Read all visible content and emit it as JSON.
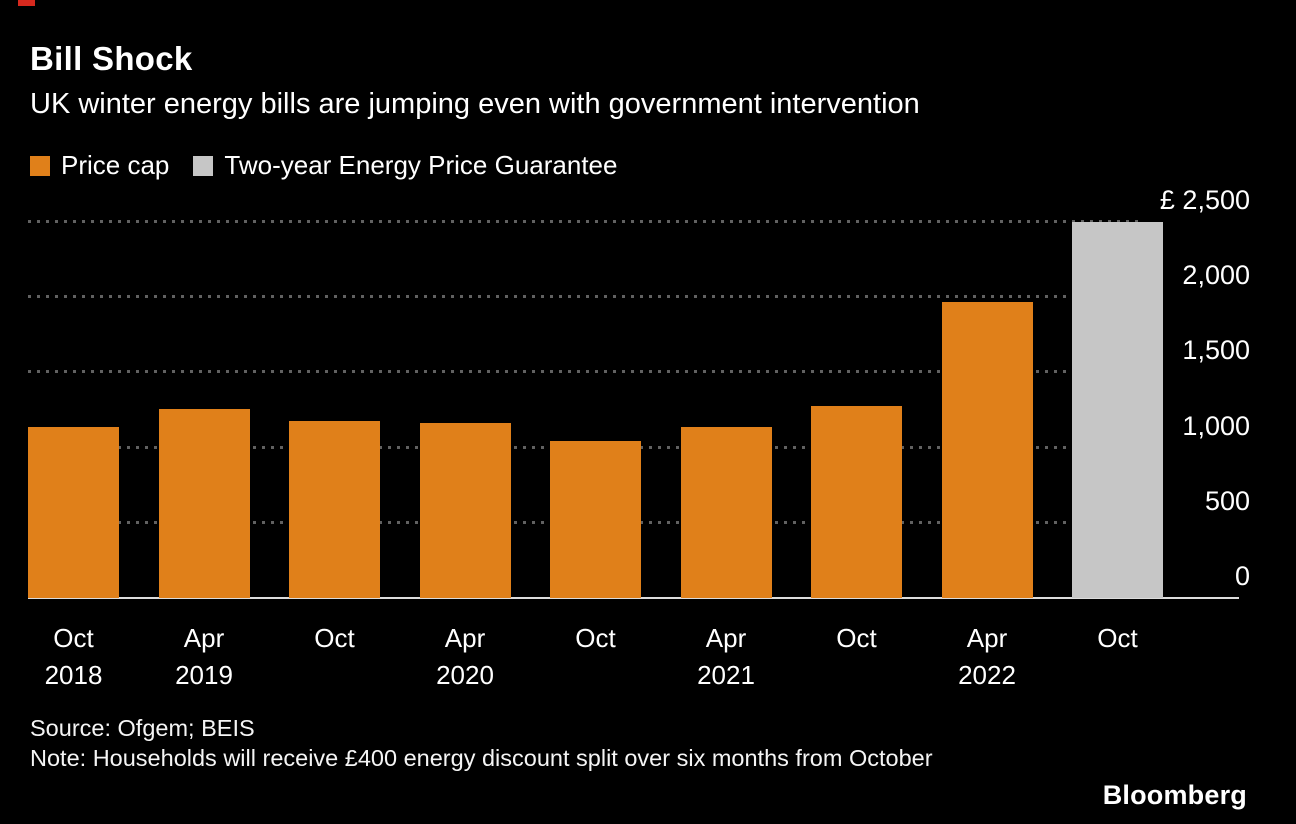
{
  "accent": {
    "color": "#d6291e"
  },
  "header": {
    "title": "Bill Shock",
    "subtitle": "UK winter energy bills are jumping even with government intervention"
  },
  "legend": {
    "items": [
      {
        "label": "Price cap",
        "color": "#e0801a"
      },
      {
        "label": "Two-year Energy Price Guarantee",
        "color": "#c6c6c6"
      }
    ]
  },
  "chart_data": {
    "type": "bar",
    "title": "Bill Shock",
    "subtitle": "UK winter energy bills are jumping even with government intervention",
    "currency": "GBP",
    "categories": [
      "Oct 2018",
      "Apr 2019",
      "Oct 2019",
      "Apr 2020",
      "Oct 2020",
      "Apr 2021",
      "Oct 2021",
      "Apr 2022",
      "Oct 2022"
    ],
    "x_tick_labels": [
      {
        "line1": "Oct",
        "line2": "2018"
      },
      {
        "line1": "Apr",
        "line2": "2019"
      },
      {
        "line1": "Oct",
        "line2": ""
      },
      {
        "line1": "Apr",
        "line2": "2020"
      },
      {
        "line1": "Oct",
        "line2": ""
      },
      {
        "line1": "Apr",
        "line2": "2021"
      },
      {
        "line1": "Oct",
        "line2": ""
      },
      {
        "line1": "Apr",
        "line2": "2022"
      },
      {
        "line1": "Oct",
        "line2": ""
      }
    ],
    "series": [
      {
        "name": "Price cap",
        "color": "#e0801a",
        "values": [
          1137,
          1254,
          1179,
          1162,
          1042,
          1138,
          1277,
          1971,
          null
        ]
      },
      {
        "name": "Two-year Energy Price Guarantee",
        "color": "#c6c6c6",
        "values": [
          null,
          null,
          null,
          null,
          null,
          null,
          null,
          null,
          2500
        ]
      }
    ],
    "ylim": [
      0,
      2500
    ],
    "yticks": [
      0,
      500,
      1000,
      1500,
      2000,
      2500
    ],
    "ytick_labels": [
      "0",
      "500",
      "1,000",
      "1,500",
      "2,000",
      "£ 2,500"
    ],
    "grid": "horizontal-dotted",
    "legend_position": "top",
    "xlabel": "",
    "ylabel": "£"
  },
  "footer": {
    "source": "Source: Ofgem; BEIS",
    "note": "Note: Households will receive £400 energy discount split over six months from October",
    "brand": "Bloomberg"
  }
}
